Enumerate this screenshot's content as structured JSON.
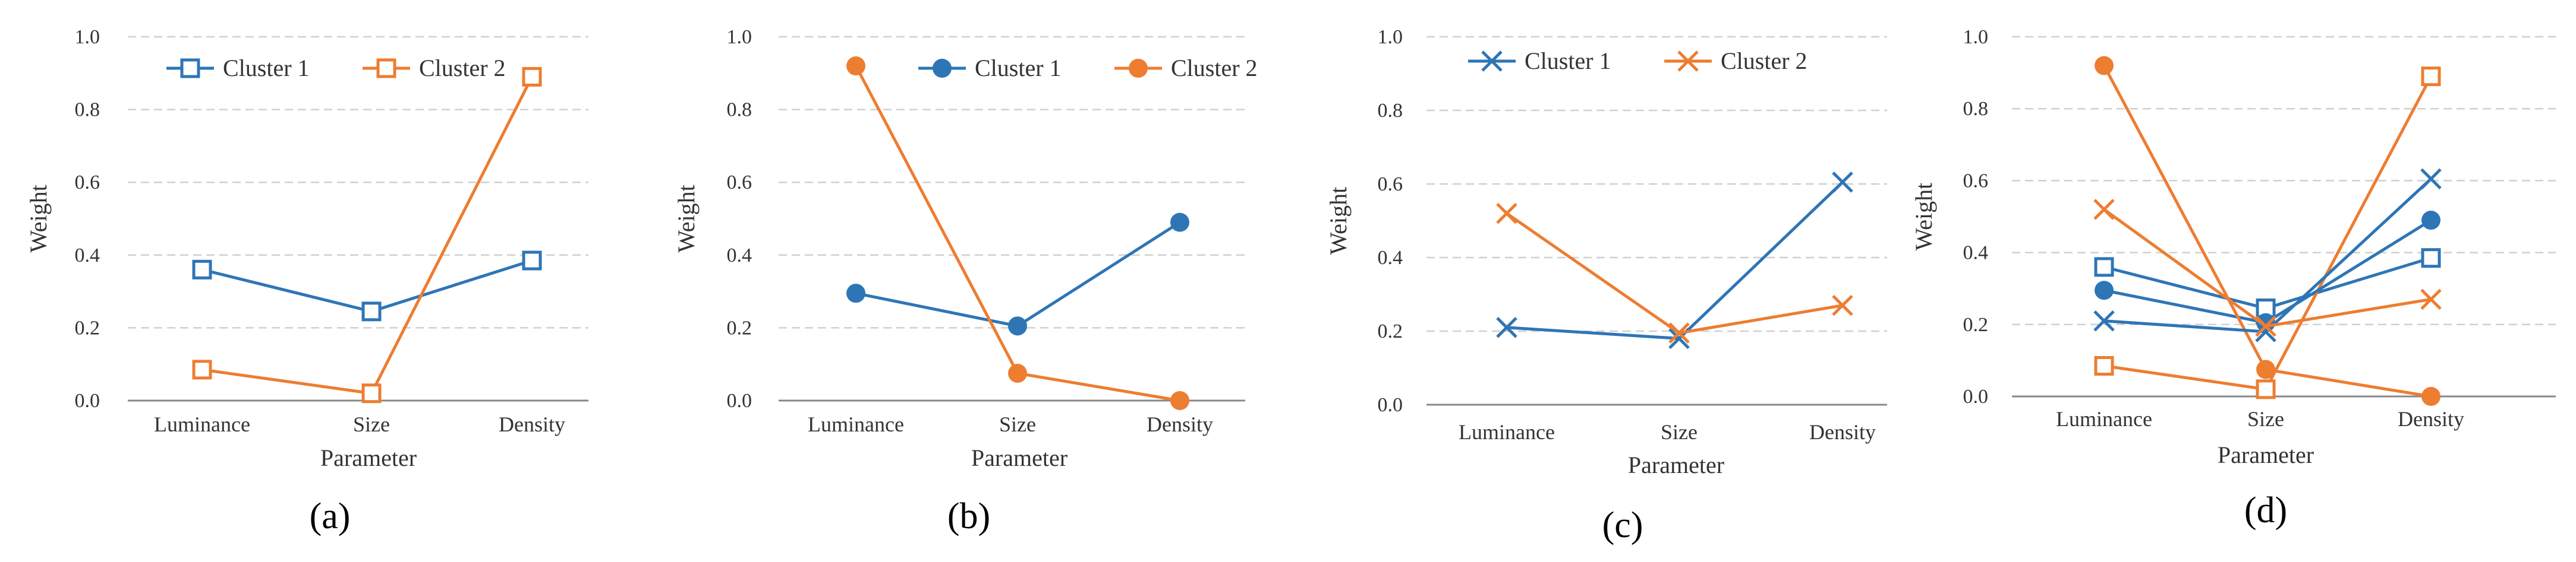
{
  "colors": {
    "cluster1": "#2E75B6",
    "cluster2": "#ED7D31",
    "grid": "#D0D0D0",
    "axis": "#888888"
  },
  "chart_data": [
    {
      "panel": "(a)",
      "type": "line",
      "marker": "open-square",
      "xlabel": "Parameter",
      "ylabel": "Weight",
      "categories": [
        "Luminance",
        "Size",
        "Density"
      ],
      "ylim": [
        0,
        1.0
      ],
      "yticks": [
        "0.0",
        "0.2",
        "0.4",
        "0.6",
        "0.8",
        "1.0"
      ],
      "legend": "top-left",
      "series": [
        {
          "name": "Cluster 1",
          "values": [
            0.36,
            0.245,
            0.385
          ]
        },
        {
          "name": "Cluster 2",
          "values": [
            0.085,
            0.02,
            0.89
          ]
        }
      ]
    },
    {
      "panel": "(b)",
      "type": "line",
      "marker": "filled-circle",
      "xlabel": "Parameter",
      "ylabel": "Weight",
      "categories": [
        "Luminance",
        "Size",
        "Density"
      ],
      "ylim": [
        0,
        1.0
      ],
      "yticks": [
        "0.0",
        "0.2",
        "0.4",
        "0.6",
        "0.8",
        "1.0"
      ],
      "legend": "top-right",
      "series": [
        {
          "name": "Cluster 1",
          "values": [
            0.295,
            0.205,
            0.49
          ]
        },
        {
          "name": "Cluster 2",
          "values": [
            0.92,
            0.075,
            0.0
          ]
        }
      ]
    },
    {
      "panel": "(c)",
      "type": "line",
      "marker": "cross",
      "xlabel": "Parameter",
      "ylabel": "Weight",
      "categories": [
        "Luminance",
        "Size",
        "Density"
      ],
      "ylim": [
        0,
        1.0
      ],
      "yticks": [
        "0.0",
        "0.2",
        "0.4",
        "0.6",
        "0.8",
        "1.0"
      ],
      "legend": "top-left",
      "series": [
        {
          "name": "Cluster 1",
          "values": [
            0.21,
            0.18,
            0.605
          ]
        },
        {
          "name": "Cluster 2",
          "values": [
            0.52,
            0.195,
            0.27
          ]
        }
      ]
    },
    {
      "panel": "(d)",
      "type": "line",
      "marker": "mixed",
      "xlabel": "Parameter",
      "ylabel": "Weight",
      "categories": [
        "Luminance",
        "Size",
        "Density"
      ],
      "ylim": [
        0,
        1.0
      ],
      "yticks": [
        "0.0",
        "0.2",
        "0.4",
        "0.6",
        "0.8",
        "1.0"
      ],
      "legend": "none",
      "series": [
        {
          "name": "Cluster 1",
          "marker": "open-square",
          "values": [
            0.36,
            0.245,
            0.385
          ]
        },
        {
          "name": "Cluster 2",
          "marker": "open-square",
          "values": [
            0.085,
            0.02,
            0.89
          ]
        },
        {
          "name": "Cluster 1",
          "marker": "filled-circle",
          "values": [
            0.295,
            0.205,
            0.49
          ]
        },
        {
          "name": "Cluster 2",
          "marker": "filled-circle",
          "values": [
            0.92,
            0.075,
            0.0
          ]
        },
        {
          "name": "Cluster 1",
          "marker": "cross",
          "values": [
            0.21,
            0.18,
            0.605
          ]
        },
        {
          "name": "Cluster 2",
          "marker": "cross",
          "values": [
            0.52,
            0.195,
            0.27
          ]
        }
      ]
    }
  ]
}
